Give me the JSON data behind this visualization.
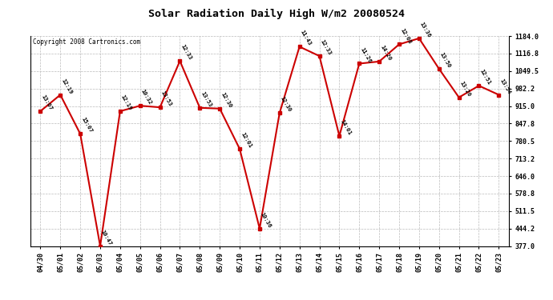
{
  "title": "Solar Radiation Daily High W/m2 20080524",
  "copyright": "Copyright 2008 Cartronics.com",
  "background_color": "#ffffff",
  "plot_bg_color": "#ffffff",
  "grid_color": "#bbbbbb",
  "line_color": "#cc0000",
  "marker_color": "#cc0000",
  "text_color": "#000000",
  "ylim": [
    377.0,
    1184.0
  ],
  "yticks": [
    377.0,
    444.2,
    511.5,
    578.8,
    646.0,
    713.2,
    780.5,
    847.8,
    915.0,
    982.2,
    1049.5,
    1116.8,
    1184.0
  ],
  "dates": [
    "04/30",
    "05/01",
    "05/02",
    "05/03",
    "05/04",
    "05/05",
    "05/06",
    "05/07",
    "05/08",
    "05/09",
    "05/10",
    "05/11",
    "05/12",
    "05/13",
    "05/14",
    "05/15",
    "05/16",
    "05/17",
    "05/18",
    "05/19",
    "05/20",
    "05/21",
    "05/22",
    "05/23"
  ],
  "values": [
    895,
    958,
    808,
    377,
    895,
    916,
    910,
    1088,
    908,
    905,
    750,
    444,
    888,
    1143,
    1107,
    800,
    1078,
    1086,
    1152,
    1175,
    1058,
    948,
    993,
    958
  ],
  "labels": [
    "13:07",
    "12:19",
    "15:07",
    "10:47",
    "12:19",
    "10:32",
    "13:53",
    "12:33",
    "13:53",
    "12:30",
    "12:01",
    "10:36",
    "12:30",
    "11:43",
    "12:33",
    "14:01",
    "11:26",
    "14:20",
    "12:08",
    "13:36",
    "13:50",
    "13:20",
    "12:51",
    "13:54"
  ],
  "label_fontsize": 5.0,
  "tick_fontsize": 6.0,
  "title_fontsize": 9.5,
  "copyright_fontsize": 5.5
}
